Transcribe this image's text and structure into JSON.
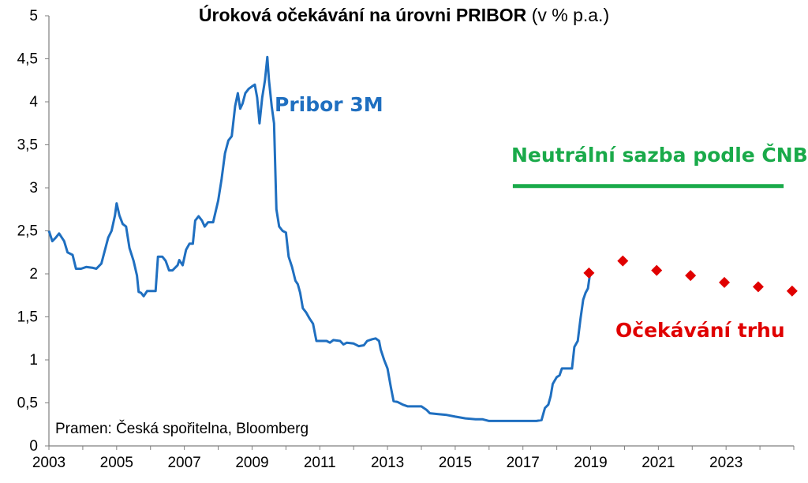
{
  "chart_data": {
    "type": "line",
    "title": "Úroková očekávání na úrovni PRIBOR",
    "subtitle": "(v % p.a.)",
    "source": "Pramen: Česká spořitelna, Bloomberg",
    "xlim": [
      2003,
      2025
    ],
    "ylim": [
      0,
      5
    ],
    "x_ticks": [
      "2003",
      "2005",
      "2007",
      "2009",
      "2011",
      "2013",
      "2015",
      "2017",
      "2019",
      "2021",
      "2023"
    ],
    "y_ticks": [
      "0",
      "0,5",
      "1",
      "1,5",
      "2",
      "2,5",
      "3",
      "3,5",
      "4",
      "4,5",
      "5"
    ],
    "grid": false,
    "series": [
      {
        "name": "Pribor 3M",
        "type": "line",
        "color": "#1f6fc0",
        "points": [
          [
            2003.0,
            2.5
          ],
          [
            2003.1,
            2.38
          ],
          [
            2003.2,
            2.42
          ],
          [
            2003.3,
            2.47
          ],
          [
            2003.45,
            2.38
          ],
          [
            2003.55,
            2.25
          ],
          [
            2003.7,
            2.22
          ],
          [
            2003.8,
            2.06
          ],
          [
            2003.95,
            2.06
          ],
          [
            2004.1,
            2.08
          ],
          [
            2004.3,
            2.07
          ],
          [
            2004.4,
            2.06
          ],
          [
            2004.55,
            2.12
          ],
          [
            2004.75,
            2.42
          ],
          [
            2004.85,
            2.5
          ],
          [
            2004.95,
            2.68
          ],
          [
            2005.0,
            2.82
          ],
          [
            2005.08,
            2.68
          ],
          [
            2005.18,
            2.58
          ],
          [
            2005.28,
            2.55
          ],
          [
            2005.38,
            2.3
          ],
          [
            2005.5,
            2.15
          ],
          [
            2005.6,
            1.98
          ],
          [
            2005.65,
            1.79
          ],
          [
            2005.72,
            1.78
          ],
          [
            2005.8,
            1.74
          ],
          [
            2005.9,
            1.8
          ],
          [
            2006.0,
            1.8
          ],
          [
            2006.15,
            1.8
          ],
          [
            2006.22,
            2.2
          ],
          [
            2006.35,
            2.2
          ],
          [
            2006.45,
            2.15
          ],
          [
            2006.55,
            2.04
          ],
          [
            2006.65,
            2.04
          ],
          [
            2006.8,
            2.1
          ],
          [
            2006.85,
            2.16
          ],
          [
            2006.95,
            2.1
          ],
          [
            2007.05,
            2.28
          ],
          [
            2007.15,
            2.35
          ],
          [
            2007.25,
            2.35
          ],
          [
            2007.32,
            2.62
          ],
          [
            2007.42,
            2.67
          ],
          [
            2007.52,
            2.62
          ],
          [
            2007.6,
            2.55
          ],
          [
            2007.7,
            2.6
          ],
          [
            2007.85,
            2.6
          ],
          [
            2008.0,
            2.85
          ],
          [
            2008.1,
            3.1
          ],
          [
            2008.2,
            3.4
          ],
          [
            2008.3,
            3.55
          ],
          [
            2008.4,
            3.6
          ],
          [
            2008.5,
            3.95
          ],
          [
            2008.58,
            4.1
          ],
          [
            2008.65,
            3.92
          ],
          [
            2008.72,
            3.98
          ],
          [
            2008.8,
            4.1
          ],
          [
            2008.9,
            4.15
          ],
          [
            2009.0,
            4.18
          ],
          [
            2009.08,
            4.2
          ],
          [
            2009.15,
            4.05
          ],
          [
            2009.22,
            3.75
          ],
          [
            2009.3,
            4.05
          ],
          [
            2009.38,
            4.25
          ],
          [
            2009.45,
            4.52
          ],
          [
            2009.5,
            4.25
          ],
          [
            2009.58,
            3.95
          ],
          [
            2009.65,
            3.75
          ],
          [
            2009.72,
            2.75
          ],
          [
            2009.8,
            2.55
          ],
          [
            2009.9,
            2.5
          ],
          [
            2010.0,
            2.48
          ],
          [
            2010.08,
            2.2
          ],
          [
            2010.18,
            2.08
          ],
          [
            2010.28,
            1.92
          ],
          [
            2010.35,
            1.88
          ],
          [
            2010.42,
            1.78
          ],
          [
            2010.5,
            1.6
          ],
          [
            2010.6,
            1.55
          ],
          [
            2010.7,
            1.48
          ],
          [
            2010.8,
            1.42
          ],
          [
            2010.9,
            1.22
          ],
          [
            2011.0,
            1.22
          ],
          [
            2011.2,
            1.22
          ],
          [
            2011.3,
            1.2
          ],
          [
            2011.4,
            1.23
          ],
          [
            2011.6,
            1.22
          ],
          [
            2011.7,
            1.18
          ],
          [
            2011.8,
            1.2
          ],
          [
            2012.0,
            1.19
          ],
          [
            2012.15,
            1.16
          ],
          [
            2012.3,
            1.17
          ],
          [
            2012.4,
            1.22
          ],
          [
            2012.55,
            1.24
          ],
          [
            2012.65,
            1.25
          ],
          [
            2012.75,
            1.22
          ],
          [
            2012.8,
            1.12
          ],
          [
            2012.9,
            1.0
          ],
          [
            2013.0,
            0.9
          ],
          [
            2013.1,
            0.68
          ],
          [
            2013.18,
            0.52
          ],
          [
            2013.3,
            0.51
          ],
          [
            2013.45,
            0.48
          ],
          [
            2013.6,
            0.46
          ],
          [
            2013.8,
            0.46
          ],
          [
            2014.0,
            0.46
          ],
          [
            2014.15,
            0.42
          ],
          [
            2014.25,
            0.38
          ],
          [
            2014.5,
            0.37
          ],
          [
            2014.75,
            0.36
          ],
          [
            2015.0,
            0.34
          ],
          [
            2015.3,
            0.32
          ],
          [
            2015.6,
            0.31
          ],
          [
            2015.8,
            0.31
          ],
          [
            2016.0,
            0.29
          ],
          [
            2016.3,
            0.29
          ],
          [
            2016.6,
            0.29
          ],
          [
            2016.9,
            0.29
          ],
          [
            2017.2,
            0.29
          ],
          [
            2017.4,
            0.29
          ],
          [
            2017.55,
            0.3
          ],
          [
            2017.65,
            0.44
          ],
          [
            2017.75,
            0.48
          ],
          [
            2017.82,
            0.58
          ],
          [
            2017.88,
            0.72
          ],
          [
            2018.0,
            0.8
          ],
          [
            2018.08,
            0.82
          ],
          [
            2018.15,
            0.9
          ],
          [
            2018.3,
            0.9
          ],
          [
            2018.45,
            0.9
          ],
          [
            2018.52,
            1.15
          ],
          [
            2018.62,
            1.22
          ],
          [
            2018.7,
            1.48
          ],
          [
            2018.78,
            1.7
          ],
          [
            2018.85,
            1.78
          ],
          [
            2018.92,
            1.83
          ],
          [
            2018.98,
            2.0
          ]
        ]
      },
      {
        "name": "Očekávání trhu",
        "type": "scatter",
        "color": "#e00000",
        "points": [
          [
            2018.95,
            2.01
          ],
          [
            2019.95,
            2.15
          ],
          [
            2020.95,
            2.04
          ],
          [
            2021.95,
            1.98
          ],
          [
            2022.95,
            1.9
          ],
          [
            2023.95,
            1.85
          ],
          [
            2024.95,
            1.8
          ]
        ]
      },
      {
        "name": "Neutrální sazba podle ČNB",
        "type": "line",
        "color": "#1aaa4a",
        "points": [
          [
            2016.7,
            3.02
          ],
          [
            2024.7,
            3.02
          ]
        ]
      }
    ]
  }
}
